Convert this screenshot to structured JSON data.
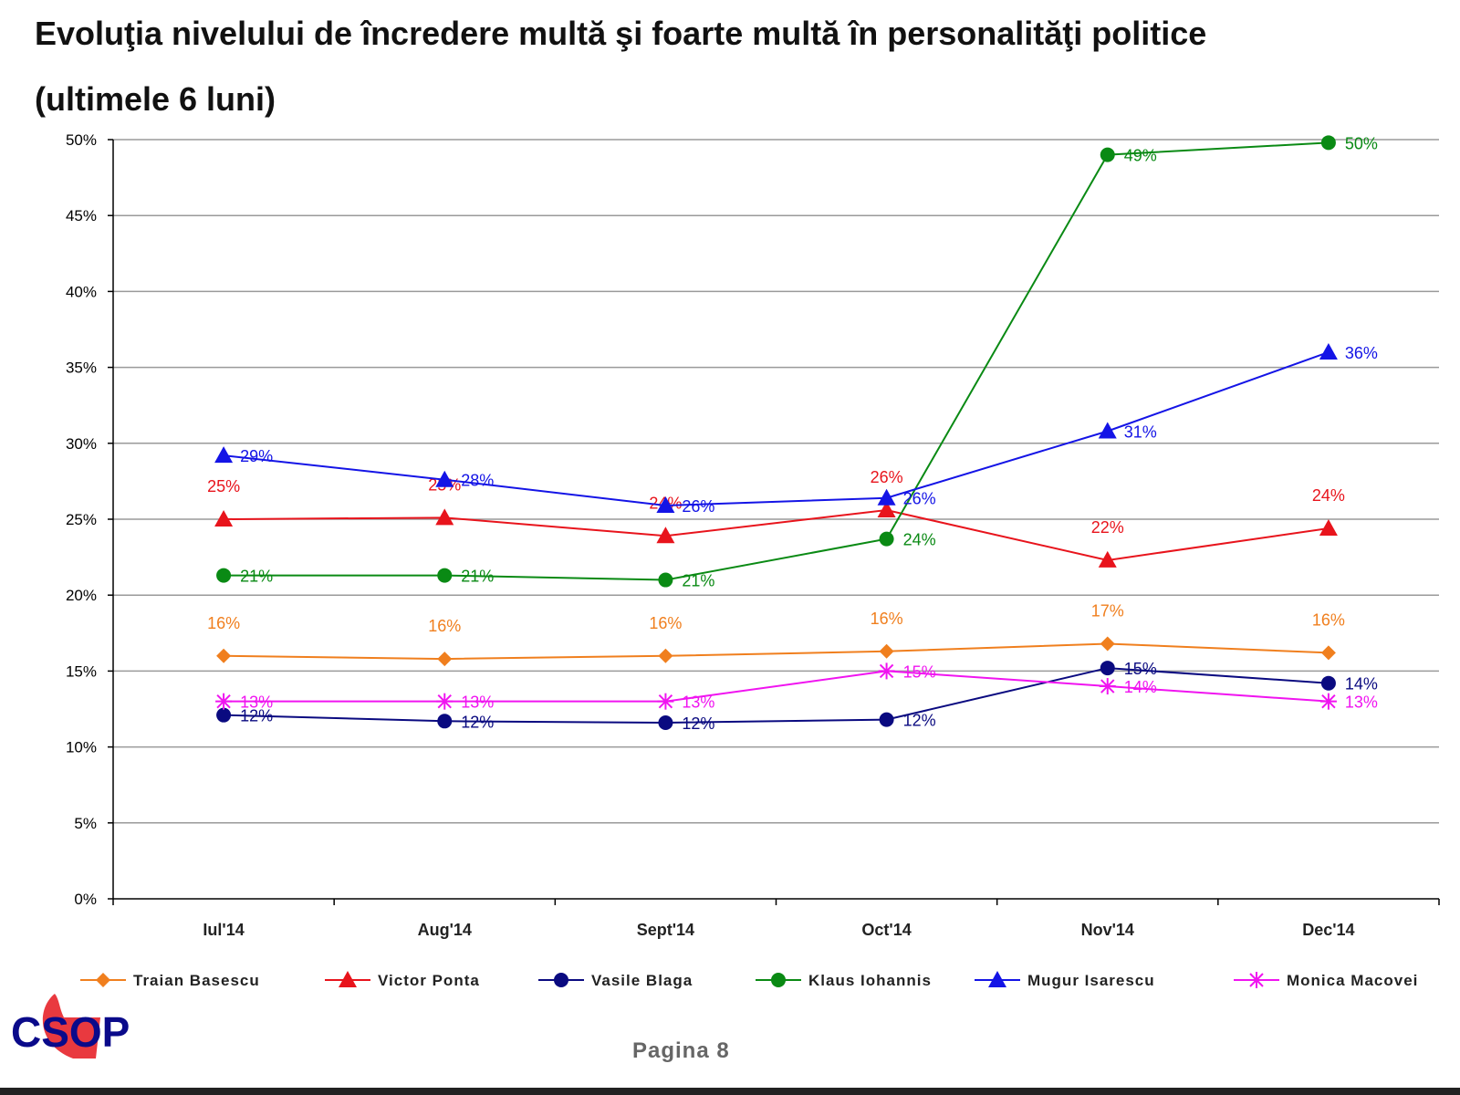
{
  "header": {
    "title_line1": "Evoluţia nivelului de încredere multă şi foarte multă în personalităţi politice",
    "title_line2": "(ultimele 6 luni)"
  },
  "footer": {
    "page_label": "Pagina 8",
    "logo_text": "CSOP"
  },
  "chart_data": {
    "type": "line",
    "title": "Evoluţia nivelului de încredere multă şi foarte multă în personalităţi politice (ultimele 6 luni)",
    "xlabel": "",
    "ylabel": "",
    "ylim": [
      0,
      50
    ],
    "yticks": [
      "0%",
      "5%",
      "10%",
      "15%",
      "20%",
      "25%",
      "30%",
      "35%",
      "40%",
      "45%",
      "50%"
    ],
    "grid": true,
    "legend_position": "bottom",
    "categories": [
      "Iul'14",
      "Aug'14",
      "Sept'14",
      "Oct'14",
      "Nov'14",
      "Dec'14"
    ],
    "series": [
      {
        "name": "Traian Basescu",
        "color": "#f07f1e",
        "marker": "diamond",
        "label_pos": "above",
        "values": [
          16.0,
          15.8,
          16.0,
          16.3,
          16.8,
          16.2
        ],
        "labels": [
          "16%",
          "16%",
          "16%",
          "16%",
          "17%",
          "16%"
        ]
      },
      {
        "name": "Victor Ponta",
        "color": "#e8141c",
        "marker": "triangle",
        "label_pos": "above",
        "values": [
          25.0,
          25.1,
          23.9,
          25.6,
          22.3,
          24.4
        ],
        "labels": [
          "25%",
          "25%",
          "24%",
          "26%",
          "22%",
          "24%"
        ]
      },
      {
        "name": "Vasile Blaga",
        "color": "#0a0a80",
        "marker": "circle",
        "label_pos": "right",
        "values": [
          12.1,
          11.7,
          11.6,
          11.8,
          15.2,
          14.2
        ],
        "labels": [
          "12%",
          "12%",
          "12%",
          "12%",
          "15%",
          "14%"
        ]
      },
      {
        "name": "Klaus Iohannis",
        "color": "#0a8a14",
        "marker": "circle",
        "label_pos": "right",
        "values": [
          21.3,
          21.3,
          21.0,
          23.7,
          49.0,
          49.8
        ],
        "labels": [
          "21%",
          "21%",
          "21%",
          "24%",
          "49%",
          "50%"
        ]
      },
      {
        "name": "Mugur Isarescu",
        "color": "#1414e6",
        "marker": "triangle",
        "label_pos": "right",
        "values": [
          29.2,
          27.6,
          25.9,
          26.4,
          30.8,
          36.0
        ],
        "labels": [
          "29%",
          "28%",
          "26%",
          "26%",
          "31%",
          "36%"
        ]
      },
      {
        "name": "Monica Macovei",
        "color": "#f014f0",
        "marker": "star",
        "label_pos": "right",
        "values": [
          13.0,
          13.0,
          13.0,
          15.0,
          14.0,
          13.0
        ],
        "labels": [
          "13%",
          "13%",
          "13%",
          "15%",
          "14%",
          "13%"
        ]
      }
    ]
  }
}
